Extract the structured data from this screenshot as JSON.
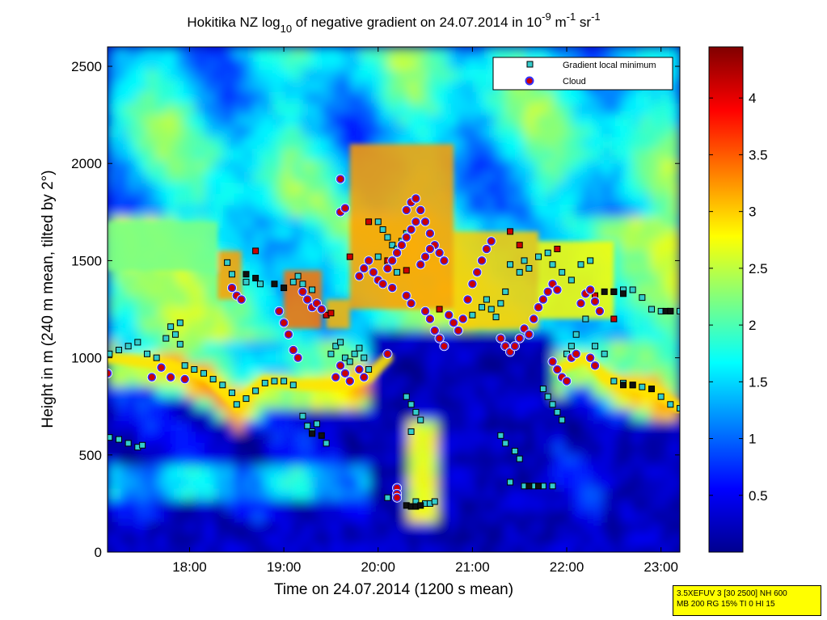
{
  "chart_data": {
    "type": "heatmap",
    "title": {
      "main": "Hokitika NZ log",
      "sub10": "10",
      "rest1": " of negative gradient on 24.07.2014 in 10",
      "sup_exp": "-9",
      "unit_m": " m",
      "sup_m": "-1",
      "unit_sr": " sr",
      "sup_sr": "-1"
    },
    "xlabel": "Time on 24.07.2014 (1200 s mean)",
    "ylabel": "Height in m (240 m mean, tilted by 2°)",
    "xlim_hours": [
      17.13,
      23.2
    ],
    "ylim": [
      0,
      2600
    ],
    "x_ticks": [
      {
        "value": 18,
        "label": "18:00"
      },
      {
        "value": 19,
        "label": "19:00"
      },
      {
        "value": 20,
        "label": "20:00"
      },
      {
        "value": 21,
        "label": "21:00"
      },
      {
        "value": 22,
        "label": "22:00"
      },
      {
        "value": 23,
        "label": "23:00"
      }
    ],
    "y_ticks": [
      {
        "value": 0,
        "label": "0"
      },
      {
        "value": 500,
        "label": "500"
      },
      {
        "value": 1000,
        "label": "1000"
      },
      {
        "value": 1500,
        "label": "1500"
      },
      {
        "value": 2000,
        "label": "2000"
      },
      {
        "value": 2500,
        "label": "2500"
      }
    ],
    "colorbar": {
      "colormap": "jet",
      "range": [
        0,
        4.45
      ],
      "ticks": [
        {
          "value": 0.5,
          "label": "0.5"
        },
        {
          "value": 1,
          "label": "1"
        },
        {
          "value": 1.5,
          "label": "1.5"
        },
        {
          "value": 2,
          "label": "2"
        },
        {
          "value": 2.5,
          "label": "2.5"
        },
        {
          "value": 3,
          "label": "3"
        },
        {
          "value": 3.5,
          "label": "3.5"
        },
        {
          "value": 4,
          "label": "4"
        }
      ]
    },
    "legend": {
      "placement": "top-right",
      "entries": [
        {
          "label": "Gradient local minimum",
          "marker": "square",
          "color": "#33cccc"
        },
        {
          "label": "Cloud",
          "marker": "circle",
          "color": "#cc0000",
          "edge": "#3333ff"
        }
      ]
    },
    "base_layers": [
      {
        "name": "boundary-layer-top",
        "points": [
          [
            17.13,
            1000
          ],
          [
            17.5,
            980
          ],
          [
            17.8,
            960
          ],
          [
            18.2,
            900
          ],
          [
            18.5,
            760
          ],
          [
            18.8,
            880
          ],
          [
            19.2,
            860
          ],
          [
            19.6,
            860
          ],
          [
            19.9,
            900
          ],
          [
            20.1,
            1000
          ]
        ]
      },
      {
        "name": "evening-layer",
        "points": [
          [
            21.9,
            940
          ],
          [
            22.2,
            1000
          ],
          [
            22.4,
            900
          ],
          [
            22.6,
            860
          ],
          [
            22.9,
            840
          ],
          [
            23.2,
            740
          ]
        ]
      }
    ],
    "gradient_minima": [
      [
        17.15,
        1020
      ],
      [
        17.25,
        1040
      ],
      [
        17.35,
        1060
      ],
      [
        17.45,
        1080
      ],
      [
        17.55,
        1020
      ],
      [
        17.65,
        1000
      ],
      [
        17.75,
        1100
      ],
      [
        17.8,
        1160
      ],
      [
        17.85,
        1120
      ],
      [
        17.9,
        1070
      ],
      [
        17.95,
        960
      ],
      [
        18.05,
        940
      ],
      [
        18.15,
        920
      ],
      [
        18.25,
        890
      ],
      [
        18.35,
        860
      ],
      [
        18.45,
        820
      ],
      [
        18.5,
        760
      ],
      [
        18.6,
        790
      ],
      [
        18.7,
        830
      ],
      [
        18.8,
        870
      ],
      [
        18.9,
        880
      ],
      [
        19.0,
        880
      ],
      [
        19.1,
        860
      ],
      [
        19.2,
        700
      ],
      [
        19.25,
        650
      ],
      [
        19.3,
        620
      ],
      [
        19.35,
        660
      ],
      [
        19.45,
        560
      ],
      [
        19.5,
        1020
      ],
      [
        19.55,
        1060
      ],
      [
        19.65,
        1000
      ],
      [
        19.7,
        980
      ],
      [
        19.75,
        1020
      ],
      [
        19.85,
        1000
      ],
      [
        19.9,
        940
      ],
      [
        18.4,
        1490
      ],
      [
        18.45,
        1430
      ],
      [
        18.6,
        1390
      ],
      [
        18.75,
        1380
      ],
      [
        19.1,
        1390
      ],
      [
        19.15,
        1420
      ],
      [
        19.2,
        1380
      ],
      [
        19.3,
        1350
      ],
      [
        17.15,
        590
      ],
      [
        17.25,
        580
      ],
      [
        17.35,
        560
      ],
      [
        17.45,
        540
      ],
      [
        17.5,
        550
      ],
      [
        20.0,
        1700
      ],
      [
        20.05,
        1660
      ],
      [
        20.1,
        1620
      ],
      [
        20.15,
        1580
      ],
      [
        20.2,
        1560
      ],
      [
        20.25,
        1600
      ],
      [
        20.3,
        1640
      ],
      [
        20.0,
        1520
      ],
      [
        20.1,
        1480
      ],
      [
        20.2,
        1440
      ],
      [
        20.3,
        800
      ],
      [
        20.35,
        760
      ],
      [
        20.4,
        720
      ],
      [
        20.45,
        680
      ],
      [
        20.35,
        620
      ],
      [
        20.4,
        260
      ],
      [
        20.5,
        250
      ],
      [
        20.55,
        250
      ],
      [
        20.6,
        260
      ],
      [
        21.0,
        1220
      ],
      [
        21.1,
        1260
      ],
      [
        21.15,
        1300
      ],
      [
        21.2,
        1250
      ],
      [
        21.25,
        1210
      ],
      [
        21.3,
        1280
      ],
      [
        21.35,
        1340
      ],
      [
        21.3,
        600
      ],
      [
        21.35,
        560
      ],
      [
        21.45,
        520
      ],
      [
        21.5,
        480
      ],
      [
        21.55,
        340
      ],
      [
        21.65,
        340
      ],
      [
        21.75,
        340
      ],
      [
        21.85,
        340
      ],
      [
        21.4,
        1480
      ],
      [
        21.5,
        1440
      ],
      [
        21.55,
        1500
      ],
      [
        21.6,
        1460
      ],
      [
        21.7,
        1520
      ],
      [
        21.8,
        1540
      ],
      [
        21.85,
        1480
      ],
      [
        21.95,
        1440
      ],
      [
        22.05,
        1400
      ],
      [
        22.15,
        1480
      ],
      [
        22.25,
        1500
      ],
      [
        21.75,
        840
      ],
      [
        21.8,
        800
      ],
      [
        21.85,
        760
      ],
      [
        21.9,
        720
      ],
      [
        21.95,
        680
      ],
      [
        22.0,
        1020
      ],
      [
        22.05,
        1060
      ],
      [
        22.1,
        1120
      ],
      [
        22.3,
        1060
      ],
      [
        22.4,
        1020
      ],
      [
        22.5,
        880
      ],
      [
        22.6,
        870
      ],
      [
        22.7,
        860
      ],
      [
        22.8,
        850
      ],
      [
        22.9,
        840
      ],
      [
        23.0,
        800
      ],
      [
        23.1,
        760
      ],
      [
        23.2,
        740
      ],
      [
        22.5,
        1340
      ],
      [
        22.6,
        1350
      ],
      [
        22.7,
        1350
      ],
      [
        22.8,
        1310
      ],
      [
        22.9,
        1250
      ],
      [
        23.0,
        1240
      ],
      [
        23.1,
        1240
      ],
      [
        23.2,
        1240
      ],
      [
        17.9,
        1180
      ],
      [
        19.6,
        1080
      ],
      [
        19.8,
        1050
      ],
      [
        20.1,
        280
      ],
      [
        21.4,
        360
      ],
      [
        22.2,
        1200
      ],
      [
        22.3,
        1290
      ]
    ],
    "clouds": [
      [
        17.13,
        920
      ],
      [
        17.6,
        900
      ],
      [
        17.7,
        950
      ],
      [
        17.8,
        900
      ],
      [
        17.95,
        890
      ],
      [
        18.45,
        1360
      ],
      [
        18.5,
        1320
      ],
      [
        18.55,
        1300
      ],
      [
        18.95,
        1240
      ],
      [
        19.0,
        1180
      ],
      [
        19.05,
        1120
      ],
      [
        19.1,
        1040
      ],
      [
        19.15,
        1000
      ],
      [
        19.2,
        1340
      ],
      [
        19.25,
        1300
      ],
      [
        19.3,
        1260
      ],
      [
        19.35,
        1280
      ],
      [
        19.4,
        1250
      ],
      [
        19.55,
        900
      ],
      [
        19.6,
        960
      ],
      [
        19.65,
        920
      ],
      [
        19.7,
        880
      ],
      [
        19.8,
        940
      ],
      [
        19.85,
        900
      ],
      [
        19.6,
        1750
      ],
      [
        19.65,
        1770
      ],
      [
        19.6,
        1920
      ],
      [
        19.8,
        1420
      ],
      [
        19.85,
        1460
      ],
      [
        19.9,
        1500
      ],
      [
        19.95,
        1440
      ],
      [
        20.0,
        1400
      ],
      [
        20.05,
        1380
      ],
      [
        20.1,
        1460
      ],
      [
        20.15,
        1500
      ],
      [
        20.2,
        1540
      ],
      [
        20.25,
        1580
      ],
      [
        20.3,
        1620
      ],
      [
        20.35,
        1660
      ],
      [
        20.4,
        1700
      ],
      [
        20.3,
        1760
      ],
      [
        20.35,
        1800
      ],
      [
        20.4,
        1820
      ],
      [
        20.45,
        1760
      ],
      [
        20.5,
        1700
      ],
      [
        20.55,
        1640
      ],
      [
        20.6,
        1580
      ],
      [
        20.65,
        1540
      ],
      [
        20.7,
        1500
      ],
      [
        20.55,
        1560
      ],
      [
        20.5,
        1520
      ],
      [
        20.45,
        1480
      ],
      [
        20.1,
        1020
      ],
      [
        20.15,
        1360
      ],
      [
        20.3,
        1320
      ],
      [
        20.35,
        1280
      ],
      [
        20.5,
        1240
      ],
      [
        20.55,
        1200
      ],
      [
        20.6,
        1140
      ],
      [
        20.65,
        1100
      ],
      [
        20.7,
        1060
      ],
      [
        20.75,
        1220
      ],
      [
        20.8,
        1180
      ],
      [
        20.85,
        1140
      ],
      [
        20.9,
        1200
      ],
      [
        20.95,
        1300
      ],
      [
        21.0,
        1380
      ],
      [
        21.05,
        1440
      ],
      [
        21.1,
        1500
      ],
      [
        21.15,
        1560
      ],
      [
        21.2,
        1600
      ],
      [
        21.3,
        1100
      ],
      [
        21.35,
        1060
      ],
      [
        21.4,
        1030
      ],
      [
        21.45,
        1060
      ],
      [
        21.5,
        1100
      ],
      [
        21.55,
        1150
      ],
      [
        21.6,
        1120
      ],
      [
        21.65,
        1200
      ],
      [
        21.7,
        1260
      ],
      [
        21.75,
        1300
      ],
      [
        21.8,
        1340
      ],
      [
        21.85,
        1380
      ],
      [
        21.9,
        1350
      ],
      [
        21.85,
        980
      ],
      [
        21.9,
        940
      ],
      [
        21.95,
        900
      ],
      [
        22.0,
        880
      ],
      [
        22.05,
        1000
      ],
      [
        22.1,
        1020
      ],
      [
        22.15,
        1280
      ],
      [
        22.2,
        1330
      ],
      [
        22.25,
        1350
      ],
      [
        22.3,
        1290
      ],
      [
        22.35,
        1240
      ],
      [
        22.25,
        1000
      ],
      [
        22.3,
        960
      ],
      [
        20.2,
        330
      ],
      [
        20.2,
        300
      ],
      [
        20.2,
        280
      ]
    ],
    "dark_markers": [
      [
        18.6,
        1430
      ],
      [
        18.7,
        1410
      ],
      [
        18.9,
        1380
      ],
      [
        19.0,
        1360
      ],
      [
        20.3,
        240
      ],
      [
        20.35,
        235
      ],
      [
        20.4,
        235
      ],
      [
        20.45,
        240
      ],
      [
        21.6,
        340
      ],
      [
        21.7,
        340
      ],
      [
        22.4,
        1340
      ],
      [
        22.5,
        1340
      ],
      [
        22.6,
        1330
      ],
      [
        23.05,
        1240
      ],
      [
        23.1,
        1240
      ],
      [
        22.6,
        860
      ],
      [
        22.7,
        860
      ],
      [
        22.9,
        840
      ],
      [
        19.3,
        610
      ],
      [
        19.4,
        600
      ]
    ],
    "red_markers": [
      [
        19.45,
        1220
      ],
      [
        19.5,
        1230
      ],
      [
        19.9,
        1700
      ],
      [
        20.1,
        1500
      ],
      [
        20.3,
        1450
      ],
      [
        21.4,
        1650
      ],
      [
        21.5,
        1580
      ],
      [
        21.9,
        1560
      ],
      [
        22.3,
        1320
      ],
      [
        22.5,
        1200
      ],
      [
        18.7,
        1550
      ],
      [
        19.7,
        1520
      ],
      [
        20.65,
        1250
      ]
    ],
    "high_layer": [
      {
        "start": 17.13,
        "end": 18.3,
        "bottom": 1450,
        "top": 1700,
        "level": 2.2
      },
      {
        "start": 18.3,
        "end": 18.55,
        "bottom": 1300,
        "top": 1550,
        "level": 3.2
      },
      {
        "start": 19.0,
        "end": 19.4,
        "bottom": 1150,
        "top": 1450,
        "level": 3.4
      },
      {
        "start": 19.45,
        "end": 19.7,
        "bottom": 1150,
        "top": 1300,
        "level": 3.1
      },
      {
        "start": 19.7,
        "end": 20.8,
        "bottom": 1250,
        "top": 2100,
        "level": 3.2
      },
      {
        "start": 20.8,
        "end": 21.7,
        "bottom": 1150,
        "top": 1650,
        "level": 3.0
      },
      {
        "start": 21.7,
        "end": 22.5,
        "bottom": 1200,
        "top": 1600,
        "level": 2.8
      }
    ]
  },
  "infobox": {
    "line1": "3.5XEFUV 3 [30 2500] NH 600",
    "line2": "MB 200 RG 15% TI 0 HI 15"
  }
}
